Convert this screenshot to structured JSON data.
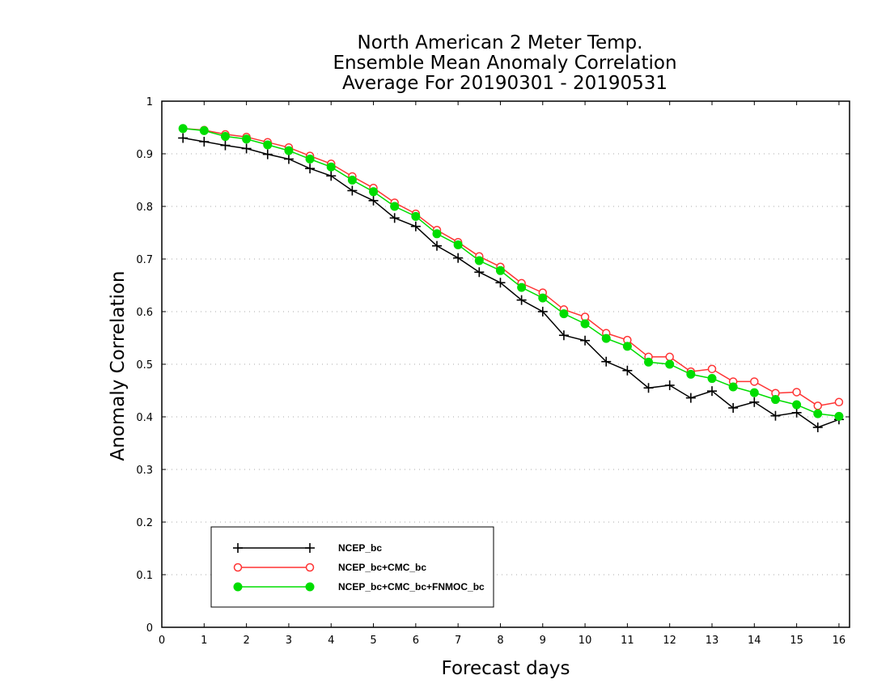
{
  "chart_data": {
    "type": "line",
    "title": [
      "North American 2 Meter Temp.",
      "Ensemble Mean Anomaly Correlation",
      "Average For 20190301 - 20190531"
    ],
    "xlabel": "Forecast days",
    "ylabel": "Anomaly Correlation",
    "xlim": [
      0,
      16.25
    ],
    "ylim": [
      0,
      1
    ],
    "x_ticks": [
      0,
      1,
      2,
      3,
      4,
      5,
      6,
      7,
      8,
      9,
      10,
      11,
      12,
      13,
      14,
      15,
      16
    ],
    "y_ticks": [
      0,
      0.1,
      0.2,
      0.3,
      0.4,
      0.5,
      0.6,
      0.7,
      0.8,
      0.9,
      1
    ],
    "y_tick_labels": [
      "0",
      "0.1",
      "0.2",
      "0.3",
      "0.4",
      "0.5",
      "0.6",
      "0.7",
      "0.8",
      "0.9",
      "1"
    ],
    "grid": "horizontal-dotted",
    "legend_position": "bottom-left",
    "x": [
      0.5,
      1,
      1.5,
      2,
      2.5,
      3,
      3.5,
      4,
      4.5,
      5,
      5.5,
      6,
      6.5,
      7,
      7.5,
      8,
      8.5,
      9,
      9.5,
      10,
      10.5,
      11,
      11.5,
      12,
      12.5,
      13,
      13.5,
      14,
      14.5,
      15,
      15.5,
      16
    ],
    "series": [
      {
        "name": "NCEP_bc",
        "color": "#000000",
        "marker": "plus",
        "values": [
          0.93,
          0.923,
          0.916,
          0.91,
          0.899,
          0.89,
          0.872,
          0.858,
          0.83,
          0.811,
          0.778,
          0.762,
          0.725,
          0.702,
          0.675,
          0.655,
          0.622,
          0.6,
          0.555,
          0.545,
          0.505,
          0.488,
          0.455,
          0.46,
          0.436,
          0.449,
          0.417,
          0.428,
          0.402,
          0.408,
          0.38,
          0.395
        ]
      },
      {
        "name": "NCEP_bc+CMC_bc",
        "color": "#ff3333",
        "marker": "open-circle",
        "values": [
          0.948,
          0.945,
          0.937,
          0.932,
          0.922,
          0.912,
          0.896,
          0.881,
          0.857,
          0.835,
          0.807,
          0.786,
          0.755,
          0.732,
          0.705,
          0.685,
          0.654,
          0.636,
          0.604,
          0.59,
          0.559,
          0.546,
          0.514,
          0.514,
          0.486,
          0.491,
          0.467,
          0.467,
          0.445,
          0.447,
          0.421,
          0.428
        ]
      },
      {
        "name": "NCEP_bc+CMC_bc+FNMOC_bc",
        "color": "#00dd00",
        "marker": "filled-circle",
        "values": [
          0.948,
          0.944,
          0.933,
          0.928,
          0.917,
          0.906,
          0.89,
          0.875,
          0.85,
          0.828,
          0.8,
          0.781,
          0.748,
          0.727,
          0.697,
          0.678,
          0.646,
          0.626,
          0.596,
          0.577,
          0.549,
          0.534,
          0.504,
          0.5,
          0.481,
          0.473,
          0.457,
          0.446,
          0.433,
          0.423,
          0.406,
          0.401
        ]
      }
    ]
  }
}
